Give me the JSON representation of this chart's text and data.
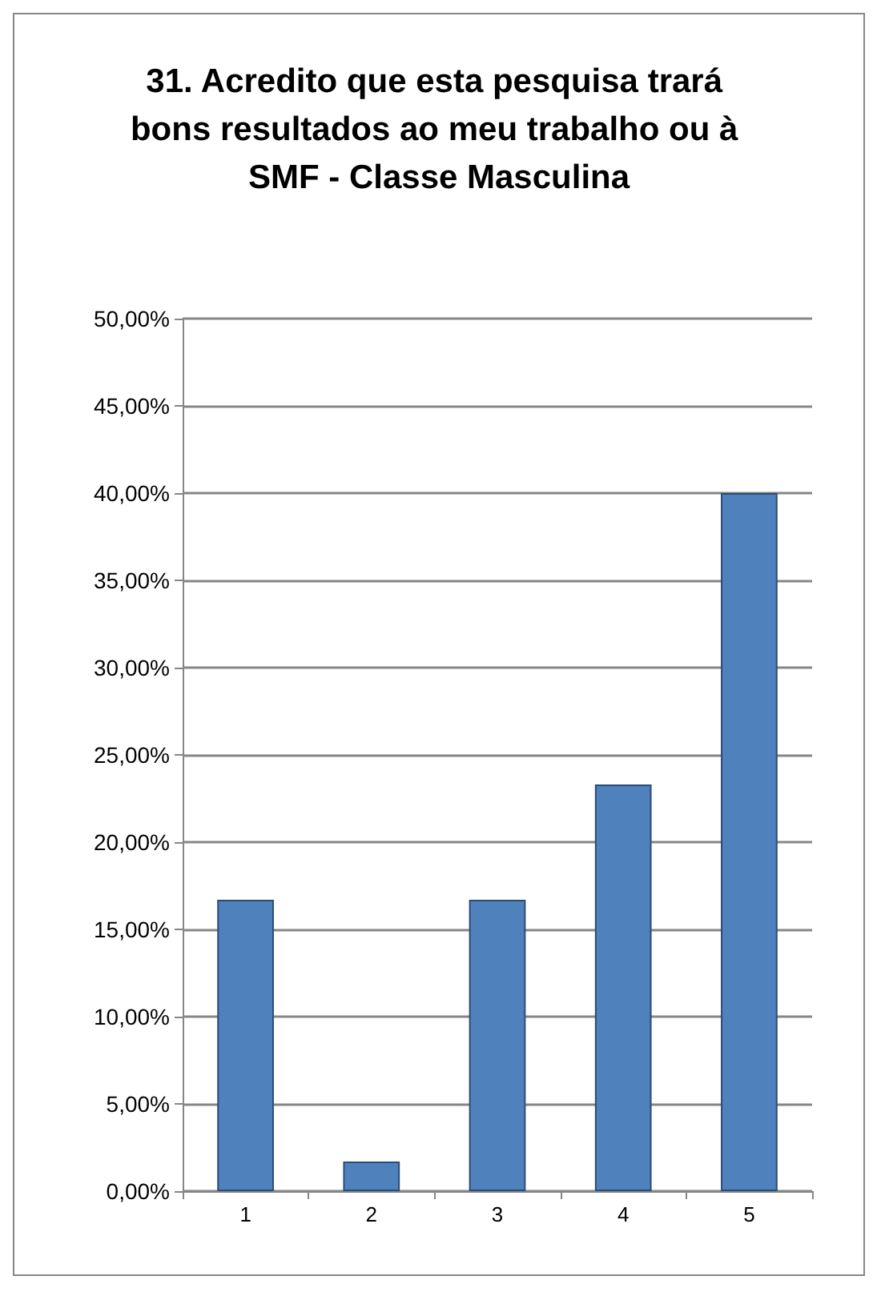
{
  "chart_data": {
    "type": "bar",
    "title": "31. Acredito que esta pesquisa trará bons resultados ao meu trabalho ou à SMF - Classe Masculina",
    "categories": [
      "1",
      "2",
      "3",
      "4",
      "5"
    ],
    "values": [
      16.7,
      1.7,
      16.7,
      23.3,
      40.0
    ],
    "color": "#4f81bd",
    "ylim": [
      0,
      50
    ],
    "yticks": [
      {
        "value": 0,
        "label": "0,00%"
      },
      {
        "value": 5,
        "label": "5,00%"
      },
      {
        "value": 10,
        "label": "10,00%"
      },
      {
        "value": 15,
        "label": "15,00%"
      },
      {
        "value": 20,
        "label": "20,00%"
      },
      {
        "value": 25,
        "label": "25,00%"
      },
      {
        "value": 30,
        "label": "30,00%"
      },
      {
        "value": 35,
        "label": "35,00%"
      },
      {
        "value": 40,
        "label": "40,00%"
      },
      {
        "value": 45,
        "label": "45,00%"
      },
      {
        "value": 50,
        "label": "50,00%"
      }
    ],
    "grid": true
  }
}
